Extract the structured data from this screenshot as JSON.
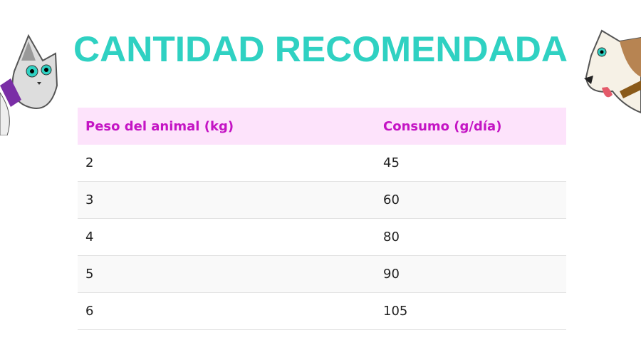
{
  "header": {
    "title": "CANTIDAD RECOMENDADA"
  },
  "table": {
    "columns": [
      "Peso del animal (kg)",
      "Consumo (g/día)"
    ],
    "rows": [
      [
        2,
        45
      ],
      [
        3,
        60
      ],
      [
        4,
        80
      ],
      [
        5,
        90
      ],
      [
        6,
        105
      ]
    ]
  }
}
